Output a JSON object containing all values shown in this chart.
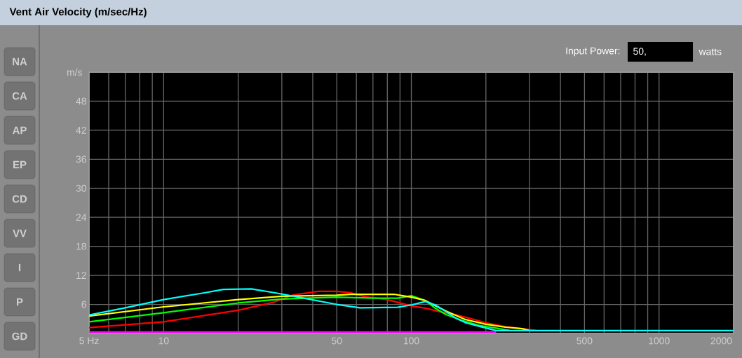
{
  "chart_data": {
    "type": "line",
    "title": "Vent Air Velocity (m/sec/Hz)",
    "ylabel": "m/s",
    "annotations": [
      "NA",
      "CA",
      "AP",
      "EP",
      "CD",
      "VV",
      "I",
      "P",
      "GD",
      "Input Power:",
      "50,",
      "watts"
    ],
    "log": "x",
    "grid": true,
    "marker": "none",
    "line_style": "solid",
    "xlim": [
      5,
      2000
    ],
    "ylim": [
      0,
      54
    ],
    "xticks": [
      {
        "value": 5,
        "label": "5 Hz"
      },
      {
        "value": 6,
        "label": null
      },
      {
        "value": 7,
        "label": null
      },
      {
        "value": 8,
        "label": null
      },
      {
        "value": 9,
        "label": null
      },
      10,
      {
        "value": 20,
        "label": null
      },
      {
        "value": 30,
        "label": null
      },
      {
        "value": 40,
        "label": null
      },
      50,
      {
        "value": 60,
        "label": null
      },
      {
        "value": 70,
        "label": null
      },
      {
        "value": 80,
        "label": null
      },
      {
        "value": 90,
        "label": null
      },
      100,
      {
        "value": 200,
        "label": null
      },
      {
        "value": 300,
        "label": null
      },
      {
        "value": 400,
        "label": null
      },
      500,
      {
        "value": 600,
        "label": null
      },
      {
        "value": 700,
        "label": null
      },
      {
        "value": 800,
        "label": null
      },
      {
        "value": 900,
        "label": null
      },
      1000,
      2000
    ],
    "yticks": [
      {
        "value": 0,
        "label": null
      },
      6,
      12,
      18,
      24,
      30,
      36,
      42,
      48,
      {
        "value": 54,
        "label": null
      }
    ],
    "series": [
      {
        "color": "#ff00ff",
        "x": [
          5,
          220
        ],
        "values": [
          0.3,
          0.3
        ]
      },
      {
        "color": "#ff0000",
        "x": [
          5,
          10,
          20,
          28,
          33,
          42,
          50,
          57,
          65,
          80,
          100,
          115,
          130,
          150,
          170,
          200,
          240,
          290,
          320
        ],
        "values": [
          1.2,
          2.4,
          4.8,
          6.5,
          7.9,
          8.7,
          8.7,
          8.4,
          7.6,
          7.0,
          5.7,
          5.2,
          4.5,
          3.9,
          3.2,
          2.2,
          1.4,
          0.9,
          0.6
        ]
      },
      {
        "color": "#00ff00",
        "x": [
          5,
          10,
          20,
          30,
          50,
          70,
          88,
          100,
          114,
          125,
          138,
          160,
          190,
          220,
          250
        ],
        "values": [
          2.4,
          4.3,
          6.3,
          7.1,
          7.5,
          7.3,
          7.3,
          7.8,
          6.8,
          5.2,
          3.9,
          2.7,
          1.6,
          1.1,
          0.6
        ]
      },
      {
        "color": "#ffff00",
        "x": [
          5,
          10,
          20,
          30,
          50,
          57,
          85,
          100,
          114,
          125,
          140,
          165,
          200,
          240,
          280,
          300
        ],
        "values": [
          3.6,
          5.5,
          7.0,
          7.7,
          7.9,
          8.1,
          8.1,
          7.5,
          6.8,
          5.7,
          4.5,
          2.9,
          1.9,
          1.3,
          1.0,
          0.6
        ]
      },
      {
        "color": "#00ffff",
        "x": [
          5,
          7,
          10,
          14.6,
          17.4,
          22.6,
          28.2,
          35,
          50,
          62,
          88,
          100,
          114,
          125,
          138,
          151,
          166,
          191,
          220,
          2000
        ],
        "values": [
          3.8,
          5.3,
          7.0,
          8.4,
          9.1,
          9.2,
          8.4,
          7.5,
          6.0,
          5.3,
          5.4,
          5.9,
          6.6,
          5.9,
          4.5,
          3.2,
          2.2,
          1.4,
          0.6,
          0.6
        ]
      }
    ]
  }
}
